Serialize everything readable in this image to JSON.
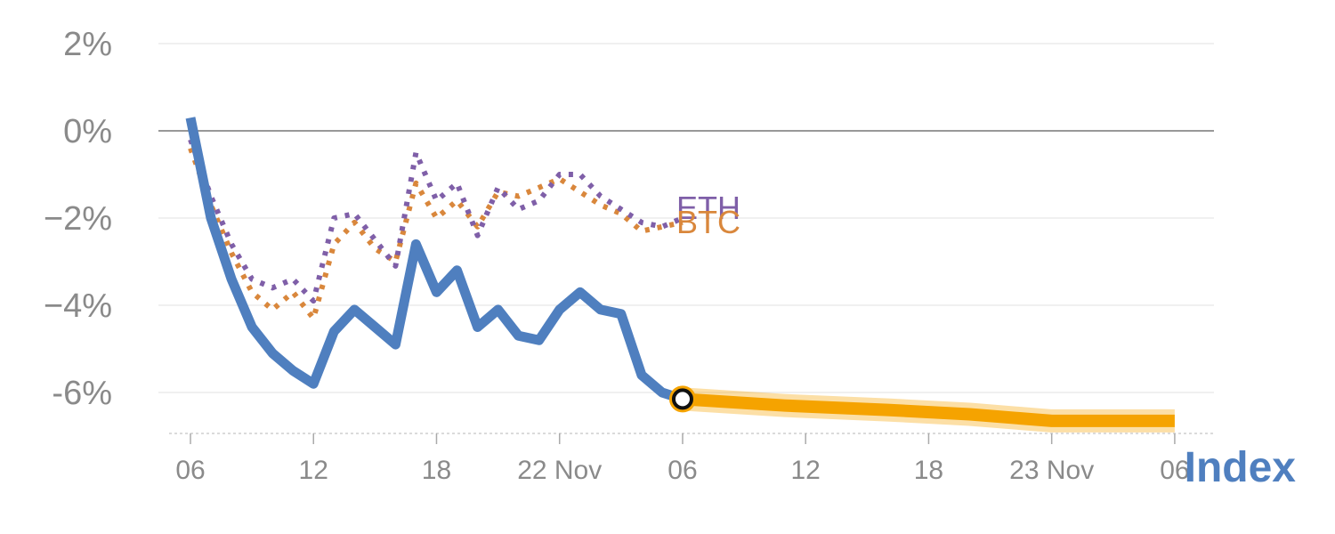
{
  "chart_data": {
    "type": "line",
    "title": "",
    "xlabel": "",
    "ylabel": "",
    "ylim": [
      -7,
      2.5
    ],
    "grid": true,
    "y_ticks": [
      2,
      0,
      -2,
      -4,
      -6
    ],
    "y_tick_labels": [
      "2%",
      "0%",
      "−2%",
      "−4%",
      "-6%"
    ],
    "x_ticks": [
      0,
      6,
      12,
      18,
      24,
      30,
      36,
      42,
      48
    ],
    "x_tick_labels": [
      "06",
      "12",
      "18",
      "22 Nov",
      "06",
      "12",
      "18",
      "23 Nov",
      "06"
    ],
    "forecast_start_x": 24,
    "series": [
      {
        "name": "Index",
        "color": "#4f7fbf",
        "style": "solid",
        "x": [
          0,
          1,
          2,
          3,
          4,
          5,
          6,
          7,
          8,
          9,
          10,
          11,
          12,
          13,
          14,
          15,
          16,
          17,
          18,
          19,
          20,
          21,
          22,
          23,
          24
        ],
        "values": [
          0.3,
          -2.0,
          -3.4,
          -4.5,
          -5.1,
          -5.5,
          -5.8,
          -4.6,
          -4.1,
          -4.5,
          -4.9,
          -2.6,
          -3.7,
          -3.2,
          -4.5,
          -4.1,
          -4.7,
          -4.8,
          -4.1,
          -3.7,
          -4.1,
          -4.2,
          -5.6,
          -6.0,
          -6.15
        ]
      },
      {
        "name": "BTC",
        "color": "#d9873c",
        "style": "dotted",
        "x": [
          0,
          1,
          2,
          3,
          4,
          5,
          6,
          7,
          8,
          9,
          10,
          11,
          12,
          13,
          14,
          15,
          16,
          17,
          18,
          19,
          20,
          21,
          22,
          23,
          24
        ],
        "values": [
          -0.4,
          -1.7,
          -2.8,
          -3.7,
          -4.1,
          -3.7,
          -4.3,
          -2.6,
          -2.1,
          -2.7,
          -3.0,
          -1.2,
          -2.0,
          -1.6,
          -2.2,
          -1.4,
          -1.5,
          -1.3,
          -1.1,
          -1.4,
          -1.7,
          -1.9,
          -2.3,
          -2.2,
          -2.1
        ]
      },
      {
        "name": "ETH",
        "color": "#7f5fa8",
        "style": "dotted",
        "x": [
          0,
          1,
          2,
          3,
          4,
          5,
          6,
          7,
          8,
          9,
          10,
          11,
          12,
          13,
          14,
          15,
          16,
          17,
          18,
          19,
          20,
          21,
          22,
          23,
          24
        ],
        "values": [
          -0.2,
          -1.5,
          -2.6,
          -3.4,
          -3.6,
          -3.4,
          -3.9,
          -2.0,
          -1.9,
          -2.5,
          -3.1,
          -0.5,
          -1.6,
          -1.2,
          -2.4,
          -1.3,
          -1.8,
          -1.6,
          -1.0,
          -1.0,
          -1.5,
          -1.8,
          -2.1,
          -2.2,
          -2.0
        ]
      },
      {
        "name": "Index forecast",
        "color": "#f5a300",
        "style": "band",
        "x": [
          24,
          29,
          34,
          38,
          42,
          48
        ],
        "values": [
          -6.15,
          -6.3,
          -6.4,
          -6.5,
          -6.65,
          -6.65
        ]
      }
    ],
    "series_labels": {
      "eth": "ETH",
      "btc": "BTC",
      "index": "Index"
    }
  }
}
